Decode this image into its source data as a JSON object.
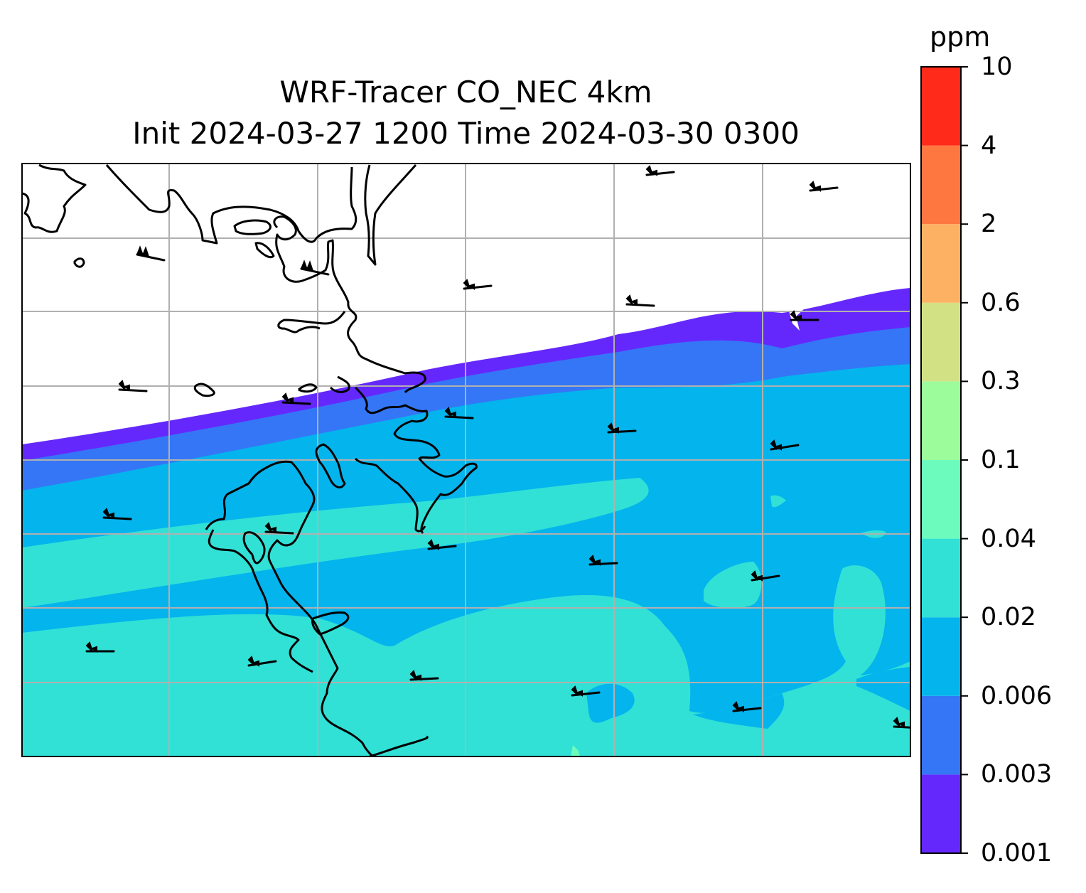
{
  "title": {
    "line1": "WRF-Tracer CO_NEC 4km",
    "line2": "Init 2024-03-27 1200 Time 2024-03-30 0300"
  },
  "colorbar": {
    "unit": "ppm",
    "levels": [
      "0.001",
      "0.003",
      "0.006",
      "0.02",
      "0.04",
      "0.1",
      "0.3",
      "0.6",
      "2",
      "4",
      "10"
    ],
    "colors": [
      "#6528fc",
      "#3476f6",
      "#04b4ed",
      "#31e1d6",
      "#6cfbbc",
      "#9cfc9c",
      "#d2e184",
      "#fdb263",
      "#fe7640",
      "#ff2a1a"
    ]
  },
  "map": {
    "grid": true,
    "projection_frame": "rectangular",
    "features": [
      "coastline-outline",
      "wind-barbs",
      "filled-concentration-contours"
    ]
  }
}
